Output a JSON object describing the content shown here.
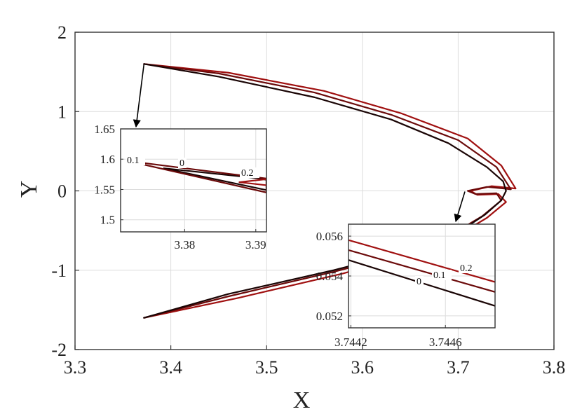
{
  "chart_data": {
    "type": "line",
    "xlabel": "X",
    "ylabel": "Y",
    "xlim": [
      3.3,
      3.8
    ],
    "ylim": [
      -2,
      2
    ],
    "x_ticks": [
      "3.3",
      "3.4",
      "3.5",
      "3.6",
      "3.7",
      "3.8"
    ],
    "y_ticks": [
      "-2",
      "-1",
      "0",
      "1",
      "2"
    ],
    "grid": true,
    "colors": {
      "series_0": "#1a0505",
      "series_0_1": "#6b0a0a",
      "series_0_2": "#a01010",
      "arrow": "#000000"
    },
    "series": [
      {
        "label": "0",
        "x": [
          3.372,
          3.45,
          3.55,
          3.63,
          3.69,
          3.73,
          3.747,
          3.75,
          3.745,
          3.728,
          3.703,
          3.66,
          3.57,
          3.46,
          3.372
        ],
        "y": [
          1.6,
          1.44,
          1.18,
          0.9,
          0.6,
          0.3,
          0.12,
          0.0,
          -0.12,
          -0.3,
          -0.5,
          -0.72,
          -1.0,
          -1.3,
          -1.6
        ]
      },
      {
        "label": "0.1",
        "x": [
          3.372,
          3.45,
          3.55,
          3.63,
          3.7,
          3.74,
          3.755,
          3.748,
          3.73,
          3.71,
          3.718,
          3.74,
          3.745,
          3.725,
          3.7,
          3.66,
          3.57,
          3.46,
          3.372
        ],
        "y": [
          1.6,
          1.48,
          1.24,
          0.96,
          0.64,
          0.3,
          0.02,
          0.03,
          0.05,
          0.0,
          -0.04,
          -0.03,
          -0.12,
          -0.32,
          -0.5,
          -0.74,
          -1.02,
          -1.33,
          -1.6
        ]
      },
      {
        "label": "0.2",
        "x": [
          3.372,
          3.46,
          3.56,
          3.64,
          3.71,
          3.745,
          3.76,
          3.752,
          3.735,
          3.713,
          3.72,
          3.742,
          3.75,
          3.73,
          3.705,
          3.665,
          3.58,
          3.47,
          3.372
        ],
        "y": [
          1.6,
          1.49,
          1.26,
          0.98,
          0.66,
          0.32,
          0.03,
          0.04,
          0.06,
          0.0,
          -0.05,
          -0.04,
          -0.14,
          -0.34,
          -0.52,
          -0.76,
          -1.04,
          -1.35,
          -1.6
        ]
      }
    ],
    "insets": [
      {
        "name": "top-left",
        "xlim": [
          3.371,
          3.3915
        ],
        "ylim": [
          1.48,
          1.65
        ],
        "x_ticks": [
          "3.38",
          "3.39"
        ],
        "y_ticks": [
          "1.5",
          "1.55",
          "1.6",
          "1.65"
        ],
        "curve_labels": [
          "0.1",
          "0",
          "0.2"
        ],
        "series": [
          {
            "label": "0",
            "x": [
              3.377,
              3.39,
              3.3915,
              3.3915,
              3.377
            ],
            "y": [
              1.585,
              1.569,
              1.566,
              1.549,
              1.585
            ]
          },
          {
            "label": "0.1",
            "x": [
              3.372,
              3.3915,
              3.3915,
              3.372
            ],
            "y": [
              1.597,
              1.568,
              1.545,
              1.597
            ]
          },
          {
            "label": "0.2",
            "x": [
              3.3915,
              3.3877,
              3.3915
            ],
            "y": [
              1.567,
              1.562,
              1.557
            ]
          }
        ]
      },
      {
        "name": "bottom-right",
        "xlim": [
          3.74419,
          3.74481
        ],
        "ylim": [
          0.0514,
          0.0566
        ],
        "x_ticks": [
          "3.7442",
          "3.7446"
        ],
        "y_ticks": [
          "0.052",
          "0.054",
          "0.056"
        ],
        "curve_labels": [
          "0.2",
          "0.1",
          "0"
        ],
        "series": [
          {
            "label": "0.2",
            "x": [
              3.74419,
              3.74481
            ],
            "y": [
              0.0558,
              0.0537
            ]
          },
          {
            "label": "0.1",
            "x": [
              3.74419,
              3.74481
            ],
            "y": [
              0.0553,
              0.0532
            ]
          },
          {
            "label": "0",
            "x": [
              3.74419,
              3.74481
            ],
            "y": [
              0.0548,
              0.0525
            ]
          }
        ]
      }
    ]
  }
}
